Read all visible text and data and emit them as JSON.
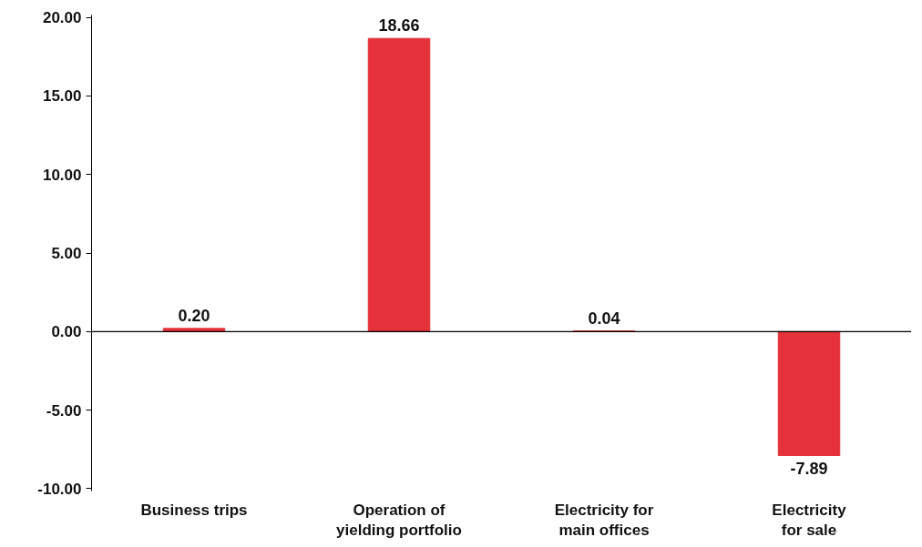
{
  "chart_data": {
    "type": "bar",
    "categories": [
      "Business trips",
      "Operation of yielding portfolio",
      "Electricity for main offices",
      "Electricity for sale"
    ],
    "values": [
      0.2,
      18.66,
      0.04,
      -7.89
    ],
    "color": "#e5323a",
    "value_labels": [
      "0.20",
      "18.66",
      "0.04",
      "-7.89"
    ],
    "ref_lines": [
      {
        "axis": "y",
        "value": 0,
        "color": "#000000"
      }
    ],
    "ylim": [
      -10,
      20
    ],
    "yticks": [
      {
        "value": -10,
        "label": "-10.00"
      },
      {
        "value": -5,
        "label": "-5.00"
      },
      {
        "value": 0,
        "label": "0.00"
      },
      {
        "value": 5,
        "label": "5.00"
      },
      {
        "value": 10,
        "label": "10.00"
      },
      {
        "value": 15,
        "label": "15.00"
      },
      {
        "value": 20,
        "label": "20.00"
      }
    ]
  }
}
